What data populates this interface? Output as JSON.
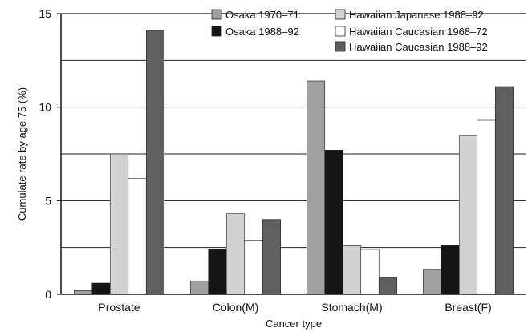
{
  "chart_data": {
    "type": "bar",
    "categories": [
      "Prostate",
      "Colon(M)",
      "Stomach(M)",
      "Breast(F)"
    ],
    "series": [
      {
        "name": "Osaka 1970–71",
        "values": [
          0.2,
          0.7,
          11.4,
          1.3
        ],
        "color": "#a0a0a0"
      },
      {
        "name": "Osaka 1988–92",
        "values": [
          0.6,
          2.4,
          7.7,
          2.6
        ],
        "color": "#151515"
      },
      {
        "name": "Hawaiian Japanese 1988–92",
        "values": [
          7.5,
          4.3,
          2.6,
          8.5
        ],
        "color": "#d2d2d2"
      },
      {
        "name": "Hawaiian Caucasian 1968–72",
        "values": [
          6.2,
          2.9,
          2.4,
          9.3
        ],
        "color": "#ffffff"
      },
      {
        "name": "Hawaiian Caucasian 1988–92",
        "values": [
          14.1,
          4.0,
          0.9,
          11.1
        ],
        "color": "#5f5f5f"
      }
    ],
    "xlabel": "Cancer type",
    "ylabel": "Cumulate rate by age 75 (%)",
    "ylim": [
      0,
      15
    ],
    "yticks": [
      "0",
      "5",
      "10",
      "15"
    ],
    "gridlines": [
      2.5,
      5,
      7.5,
      10,
      12.5
    ],
    "grid": true,
    "legend_position": "top-right"
  }
}
